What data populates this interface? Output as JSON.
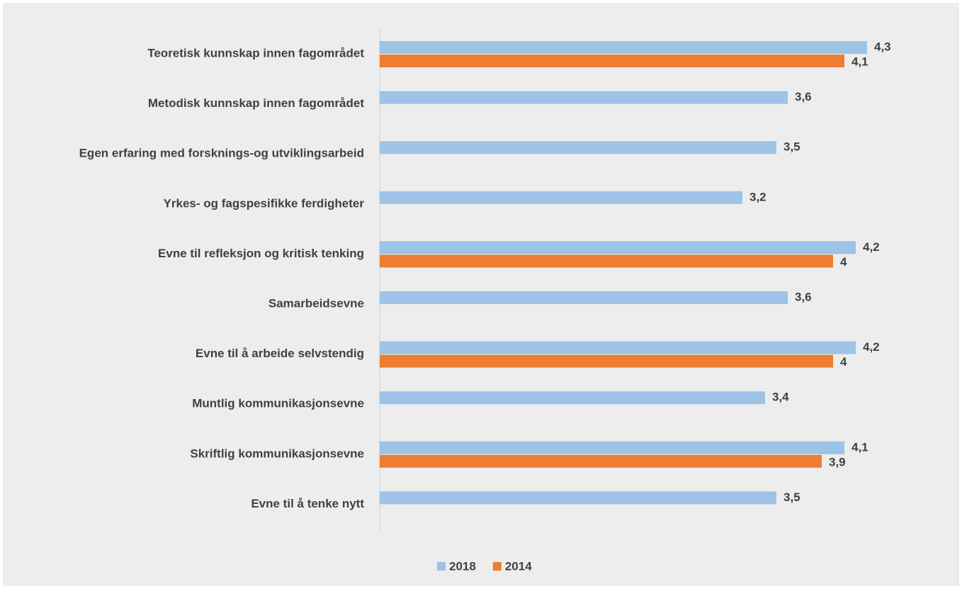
{
  "chart_data": {
    "type": "hbar",
    "categories": [
      "Teoretisk kunnskap innen fagområdet",
      "Metodisk kunnskap innen fagområdet",
      "Egen erfaring med forsknings-og utviklingsarbeid",
      "Yrkes- og fagspesifikke ferdigheter",
      "Evne til refleksjon og kritisk tenking",
      "Samarbeidsevne",
      "Evne til å arbeide selvstendig",
      "Muntlig kommunikasjonsevne",
      "Skriftlig kommunikasjonsevne",
      "Evne til å tenke nytt"
    ],
    "series": [
      {
        "name": "2018",
        "color": "#9dc3e6",
        "values": [
          4.3,
          3.6,
          3.5,
          3.2,
          4.2,
          3.6,
          4.2,
          3.4,
          4.1,
          3.5
        ],
        "value_labels": [
          "4,3",
          "3,6",
          "3,5",
          "3,2",
          "4,2",
          "3,6",
          "4,2",
          "3,4",
          "4,1",
          "3,5"
        ]
      },
      {
        "name": "2014",
        "color": "#ed7d31",
        "values": [
          4.1,
          null,
          null,
          null,
          4,
          null,
          4,
          null,
          3.9,
          null
        ],
        "value_labels": [
          "4,1",
          null,
          null,
          null,
          "4",
          null,
          "4",
          null,
          "3,9",
          null
        ]
      }
    ],
    "xlim": [
      0,
      4.8
    ],
    "grid": false,
    "legend": "bottom"
  }
}
